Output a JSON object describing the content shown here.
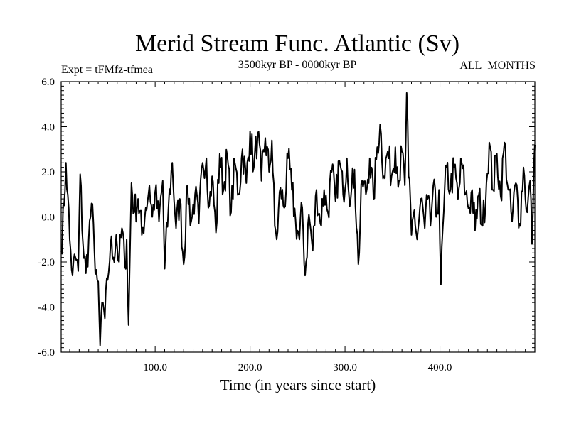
{
  "chart_data": {
    "type": "line",
    "title": "Merid Stream Func. Atlantic (Sv)",
    "subtitle_left": "Expt = tFMfz-tfmea",
    "subtitle_center": "3500kyr BP - 0000kyr BP",
    "subtitle_right": "ALL_MONTHS",
    "xlabel": "Time (in years since start)",
    "ylabel": "",
    "xlim": [
      1,
      500
    ],
    "ylim": [
      -6,
      6
    ],
    "xticks": [
      {
        "value": 100,
        "label": "100.0"
      },
      {
        "value": 200,
        "label": "200.0"
      },
      {
        "value": 300,
        "label": "300.0"
      },
      {
        "value": 400,
        "label": "400.0"
      }
    ],
    "yticks": [
      {
        "value": 6,
        "label": "6.0"
      },
      {
        "value": 4,
        "label": "4.0"
      },
      {
        "value": 2,
        "label": "2.0"
      },
      {
        "value": 0,
        "label": "0.0"
      },
      {
        "value": -2,
        "label": "-2.0"
      },
      {
        "value": -4,
        "label": "-4.0"
      },
      {
        "value": -6,
        "label": "-6.0"
      }
    ],
    "reference_line": 0,
    "grid": false,
    "anchors": [
      [
        1,
        -1.5
      ],
      [
        4,
        0.5
      ],
      [
        6,
        2.4
      ],
      [
        8,
        1.0
      ],
      [
        10,
        -1.0
      ],
      [
        13,
        -2.6
      ],
      [
        16,
        -1.8
      ],
      [
        19,
        -2.4
      ],
      [
        21,
        1.9
      ],
      [
        24,
        -1.2
      ],
      [
        27,
        -2.5
      ],
      [
        30,
        -1.0
      ],
      [
        33,
        0.6
      ],
      [
        36,
        -1.5
      ],
      [
        39,
        -2.8
      ],
      [
        41,
        -4.3
      ],
      [
        42,
        -5.7
      ],
      [
        44,
        -3.8
      ],
      [
        47,
        -4.5
      ],
      [
        50,
        -2.8
      ],
      [
        53,
        -1.2
      ],
      [
        56,
        -1.8
      ],
      [
        59,
        -0.8
      ],
      [
        62,
        -2.0
      ],
      [
        65,
        -0.5
      ],
      [
        68,
        -2.2
      ],
      [
        70,
        -1.0
      ],
      [
        72,
        -4.8
      ],
      [
        75,
        1.5
      ],
      [
        78,
        0.2
      ],
      [
        82,
        0.8
      ],
      [
        86,
        -0.8
      ],
      [
        90,
        0.4
      ],
      [
        94,
        1.4
      ],
      [
        97,
        0.0
      ],
      [
        100,
        1.1
      ],
      [
        104,
        -0.2
      ],
      [
        108,
        1.6
      ],
      [
        110,
        -2.3
      ],
      [
        114,
        0.4
      ],
      [
        118,
        2.4
      ],
      [
        122,
        -0.5
      ],
      [
        126,
        0.8
      ],
      [
        130,
        -2.1
      ],
      [
        134,
        1.4
      ],
      [
        138,
        -0.2
      ],
      [
        142,
        1.0
      ],
      [
        146,
        -0.3
      ],
      [
        150,
        2.4
      ],
      [
        154,
        2.6
      ],
      [
        157,
        0.5
      ],
      [
        160,
        1.8
      ],
      [
        164,
        -0.7
      ],
      [
        168,
        2.8
      ],
      [
        172,
        1.2
      ],
      [
        176,
        2.7
      ],
      [
        180,
        0.2
      ],
      [
        184,
        2.4
      ],
      [
        188,
        1.0
      ],
      [
        192,
        3.0
      ],
      [
        196,
        1.5
      ],
      [
        200,
        3.8
      ],
      [
        204,
        2.2
      ],
      [
        208,
        3.7
      ],
      [
        212,
        1.6
      ],
      [
        216,
        3.5
      ],
      [
        220,
        2.0
      ],
      [
        223,
        3.4
      ],
      [
        226,
        -0.4
      ],
      [
        228,
        -1.0
      ],
      [
        232,
        1.3
      ],
      [
        236,
        0.4
      ],
      [
        240,
        2.6
      ],
      [
        244,
        1.2
      ],
      [
        248,
        -0.2
      ],
      [
        252,
        -1.0
      ],
      [
        255,
        0.4
      ],
      [
        258,
        -2.6
      ],
      [
        262,
        0.1
      ],
      [
        266,
        -1.5
      ],
      [
        270,
        1.2
      ],
      [
        274,
        -0.3
      ],
      [
        278,
        1.2
      ],
      [
        282,
        0.2
      ],
      [
        286,
        2.0
      ],
      [
        290,
        0.7
      ],
      [
        294,
        2.5
      ],
      [
        298,
        1.0
      ],
      [
        302,
        2.6
      ],
      [
        306,
        0.8
      ],
      [
        310,
        2.1
      ],
      [
        314,
        -2.1
      ],
      [
        318,
        1.6
      ],
      [
        322,
        1.0
      ],
      [
        326,
        2.6
      ],
      [
        330,
        0.8
      ],
      [
        334,
        3.1
      ],
      [
        337,
        4.1
      ],
      [
        341,
        1.8
      ],
      [
        345,
        2.9
      ],
      [
        349,
        1.8
      ],
      [
        353,
        3.1
      ],
      [
        357,
        1.6
      ],
      [
        360,
        2.9
      ],
      [
        363,
        1.4
      ],
      [
        365,
        5.5
      ],
      [
        367,
        1.8
      ],
      [
        370,
        -0.8
      ],
      [
        373,
        0.3
      ],
      [
        376,
        -1.0
      ],
      [
        380,
        0.8
      ],
      [
        384,
        -0.5
      ],
      [
        387,
        0.8
      ],
      [
        390,
        -0.4
      ],
      [
        393,
        1.4
      ],
      [
        396,
        0.0
      ],
      [
        399,
        1.2
      ],
      [
        401,
        -3.0
      ],
      [
        404,
        0.2
      ],
      [
        407,
        2.2
      ],
      [
        411,
        1.2
      ],
      [
        415,
        2.2
      ],
      [
        419,
        0.8
      ],
      [
        423,
        2.4
      ],
      [
        427,
        1.0
      ],
      [
        431,
        0.4
      ],
      [
        434,
        1.2
      ],
      [
        437,
        -0.6
      ],
      [
        441,
        1.0
      ],
      [
        445,
        -0.4
      ],
      [
        449,
        1.5
      ],
      [
        452,
        3.3
      ],
      [
        456,
        1.2
      ],
      [
        460,
        2.8
      ],
      [
        464,
        0.9
      ],
      [
        468,
        3.3
      ],
      [
        472,
        1.2
      ],
      [
        476,
        -0.2
      ],
      [
        480,
        1.5
      ],
      [
        484,
        -0.3
      ],
      [
        488,
        2.2
      ],
      [
        492,
        0.2
      ],
      [
        495,
        1.6
      ],
      [
        497,
        -1.2
      ],
      [
        499,
        2.4
      ],
      [
        500,
        3.2
      ]
    ]
  }
}
